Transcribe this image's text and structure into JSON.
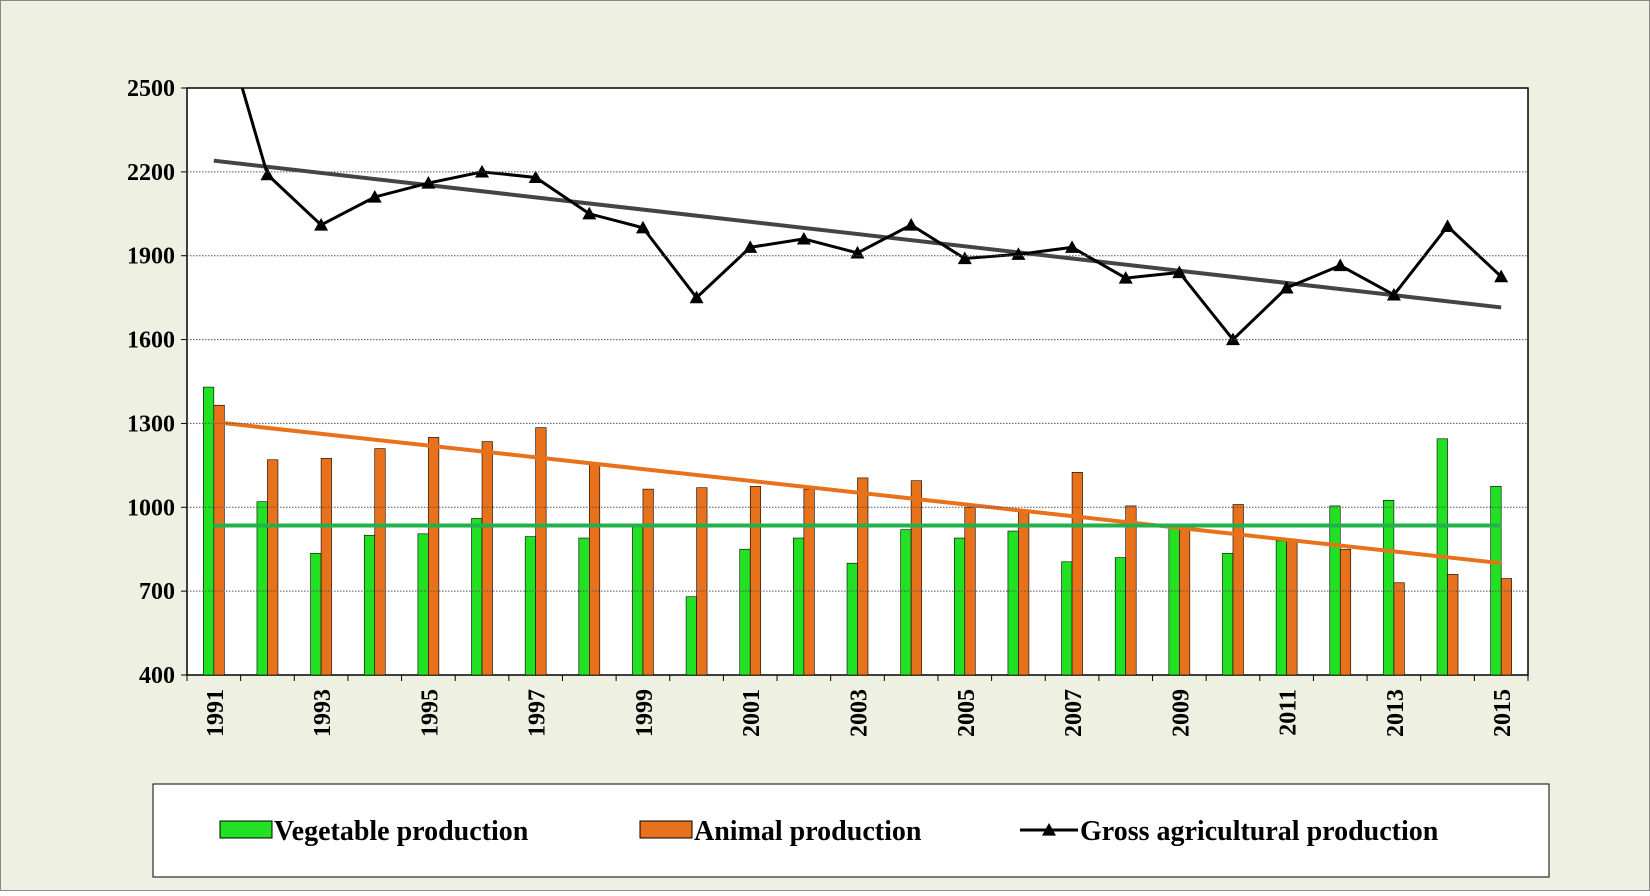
{
  "chart_data": {
    "type": "bar_line",
    "categories": [
      "1991",
      null,
      "1993",
      null,
      "1995",
      null,
      "1997",
      null,
      "1999",
      null,
      "2001",
      null,
      "2003",
      null,
      "2005",
      null,
      "2007",
      null,
      "2009",
      null,
      "2011",
      null,
      "2013",
      null,
      "2015"
    ],
    "series": [
      {
        "name": "Vegetable production",
        "type": "bar",
        "color": "#22e022",
        "values": [
          1430,
          1020,
          835,
          900,
          905,
          960,
          895,
          890,
          940,
          680,
          850,
          890,
          800,
          920,
          890,
          915,
          805,
          820,
          925,
          835,
          880,
          1005,
          1025,
          1245,
          1075
        ]
      },
      {
        "name": "Animal production",
        "type": "bar",
        "color": "#e8711c",
        "values": [
          1365,
          1170,
          1175,
          1210,
          1250,
          1235,
          1285,
          1155,
          1065,
          1070,
          1075,
          1065,
          1105,
          1095,
          1000,
          990,
          1125,
          1005,
          925,
          1010,
          880,
          850,
          730,
          760,
          745
        ]
      },
      {
        "name": "Gross agricultural production",
        "type": "line",
        "color": "#000000",
        "values": [
          2850,
          2190,
          2010,
          2110,
          2160,
          2200,
          2180,
          2050,
          2000,
          1750,
          1930,
          1960,
          1910,
          2010,
          1890,
          1905,
          1930,
          1820,
          1840,
          1600,
          1785,
          1865,
          1760,
          2005,
          1825
        ]
      }
    ],
    "trendlines": [
      {
        "color": "#444444",
        "values": [
          2240,
          1715
        ]
      },
      {
        "color": "#e8711c",
        "values": [
          1305,
          800
        ]
      },
      {
        "color": "#22b14c",
        "values": [
          935,
          935
        ]
      }
    ],
    "ylim": [
      400,
      2500
    ],
    "yticks": [
      400,
      700,
      1000,
      1300,
      1600,
      1900,
      2200,
      2500
    ],
    "grid": true
  }
}
